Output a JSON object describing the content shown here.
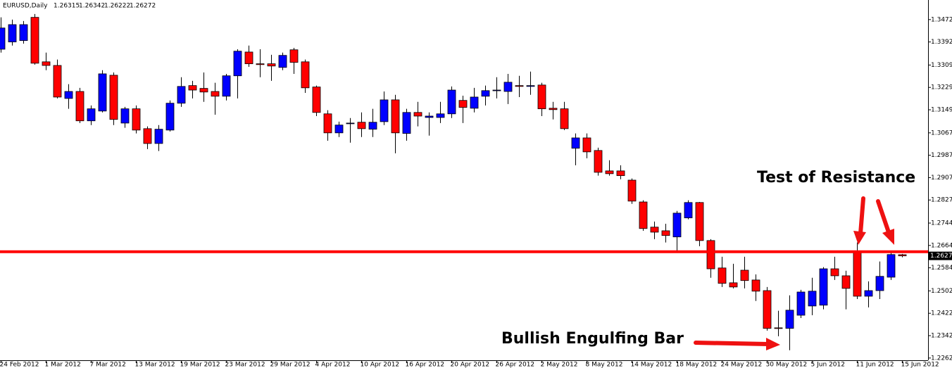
{
  "chart_data": {
    "type": "candlestick",
    "title": "EURUSD,Daily",
    "up_color": "#0000ff",
    "down_color": "#ff0000",
    "categories": [
      "24 Feb 2012",
      null,
      null,
      null,
      "1 Mar 2012",
      null,
      null,
      null,
      "7 Mar 2012",
      null,
      null,
      null,
      "13 Mar 2012",
      null,
      null,
      null,
      "19 Mar 2012",
      null,
      null,
      null,
      "23 Mar 2012",
      null,
      null,
      null,
      "29 Mar 2012",
      null,
      null,
      null,
      "4 Apr 2012",
      null,
      null,
      null,
      "10 Apr 2012",
      null,
      null,
      null,
      "16 Apr 2012",
      null,
      null,
      null,
      "20 Apr 2012",
      null,
      null,
      null,
      "26 Apr 2012",
      null,
      null,
      null,
      "2 May 2012",
      null,
      null,
      null,
      "8 May 2012",
      null,
      null,
      null,
      "14 May 2012",
      null,
      null,
      null,
      "18 May 2012",
      null,
      null,
      null,
      "24 May 2012",
      null,
      null,
      null,
      "30 May 2012",
      null,
      null,
      null,
      "5 Jun 2012",
      null,
      null,
      null,
      "11 Jun 2012",
      null,
      null,
      null,
      "15 Jun 2012"
    ],
    "open": [
      1.3366,
      1.3392,
      1.3397,
      1.348,
      1.3321,
      1.3308,
      1.319,
      1.3215,
      1.311,
      1.3145,
      1.3273,
      1.3102,
      1.3153,
      1.3082,
      1.3029,
      1.3077,
      1.3173,
      1.3236,
      1.3226,
      1.3215,
      1.3198,
      1.3271,
      1.3356,
      1.3314,
      1.3314,
      1.3301,
      1.3364,
      1.3321,
      1.3231,
      1.3135,
      1.3067,
      1.31,
      1.3105,
      1.308,
      1.3107,
      1.3185,
      1.3065,
      1.314,
      1.3122,
      1.3122,
      1.3135,
      1.3183,
      1.3155,
      1.3198,
      1.3218,
      1.3215,
      1.3236,
      1.3233,
      1.3238,
      1.3155,
      1.3153,
      1.3012,
      1.3049,
      1.3004,
      1.2931,
      1.2931,
      1.2898,
      1.282,
      1.273,
      1.2717,
      1.2695,
      1.2763,
      1.2818,
      1.2682,
      1.2584,
      1.2531,
      1.2576,
      1.2541,
      1.2503,
      1.237,
      1.2368,
      1.2415,
      1.2448,
      1.2451,
      1.2581,
      1.2556,
      1.2642,
      1.2483,
      1.2503,
      1.2551,
      1.26315
    ],
    "high": [
      1.348,
      1.3472,
      1.3467,
      1.3492,
      1.3354,
      1.3329,
      1.3241,
      1.3228,
      1.3165,
      1.3291,
      1.3283,
      1.316,
      1.3165,
      1.309,
      1.3095,
      1.3183,
      1.3266,
      1.3253,
      1.3283,
      1.3246,
      1.3278,
      1.3366,
      1.3379,
      1.3366,
      1.3346,
      1.3354,
      1.3371,
      1.3329,
      1.3236,
      1.3148,
      1.3107,
      1.312,
      1.314,
      1.3153,
      1.3215,
      1.3203,
      1.3153,
      1.3178,
      1.314,
      1.3178,
      1.3233,
      1.32,
      1.3228,
      1.3236,
      1.3266,
      1.3278,
      1.3271,
      1.3286,
      1.3246,
      1.3178,
      1.3178,
      1.3065,
      1.3065,
      1.3014,
      1.2969,
      1.2951,
      1.2904,
      1.2826,
      1.275,
      1.2742,
      1.2788,
      1.2826,
      1.282,
      1.2687,
      1.2624,
      1.2599,
      1.2624,
      1.2561,
      1.2516,
      1.2431,
      1.2486,
      1.2506,
      1.2549,
      1.2587,
      1.2624,
      1.2574,
      1.2675,
      1.2536,
      1.2607,
      1.2642,
      1.26342
    ],
    "low": [
      1.3354,
      1.3379,
      1.3386,
      1.3311,
      1.3291,
      1.319,
      1.3153,
      1.3102,
      1.3095,
      1.314,
      1.3095,
      1.3085,
      1.3065,
      1.3009,
      1.3002,
      1.3072,
      1.316,
      1.319,
      1.3178,
      1.3132,
      1.3183,
      1.319,
      1.3303,
      1.3266,
      1.3253,
      1.3291,
      1.3278,
      1.321,
      1.3127,
      1.3039,
      1.3052,
      1.3032,
      1.3052,
      1.3052,
      1.3095,
      1.2994,
      1.3039,
      1.309,
      1.3057,
      1.3102,
      1.312,
      1.3102,
      1.314,
      1.3165,
      1.319,
      1.317,
      1.3195,
      1.3203,
      1.3127,
      1.3115,
      1.3077,
      1.2951,
      1.2976,
      1.2914,
      1.2914,
      1.2901,
      1.2813,
      1.2717,
      1.2687,
      1.2675,
      1.2642,
      1.2758,
      1.2662,
      1.2549,
      1.2516,
      1.2511,
      1.2511,
      1.2466,
      1.236,
      1.234,
      1.229,
      1.2405,
      1.2415,
      1.2436,
      1.2541,
      1.2436,
      1.2473,
      1.2443,
      1.2473,
      1.2541,
      1.26222
    ],
    "close": [
      1.3442,
      1.3454,
      1.3454,
      1.3316,
      1.3308,
      1.3195,
      1.3215,
      1.311,
      1.3153,
      1.3278,
      1.3115,
      1.3153,
      1.3077,
      1.3029,
      1.308,
      1.3173,
      1.3233,
      1.322,
      1.3213,
      1.3198,
      1.3271,
      1.3359,
      1.3314,
      1.3311,
      1.3306,
      1.3344,
      1.3319,
      1.3228,
      1.314,
      1.3067,
      1.3095,
      1.3102,
      1.3082,
      1.3105,
      1.3185,
      1.3067,
      1.314,
      1.3127,
      1.3127,
      1.3135,
      1.322,
      1.3158,
      1.3195,
      1.3218,
      1.322,
      1.3248,
      1.3233,
      1.3236,
      1.3153,
      1.315,
      1.3082,
      1.3049,
      1.2999,
      1.2926,
      1.2921,
      1.2914,
      1.2823,
      1.2725,
      1.2712,
      1.27,
      1.278,
      1.2818,
      1.2682,
      1.2581,
      1.2529,
      1.2516,
      1.2539,
      1.2501,
      1.2368,
      1.2368,
      1.2433,
      1.2498,
      1.2501,
      1.2581,
      1.2556,
      1.2511,
      1.2483,
      1.2503,
      1.2554,
      1.2632,
      1.26272
    ],
    "ylim": [
      1.2254,
      1.3542
    ],
    "yticks": [
      {
        "value": 1.3472,
        "label": "1.34720"
      },
      {
        "value": 1.3392,
        "label": "1.33920"
      },
      1.33095,
      1.32295,
      1.31495,
      {
        "value": 1.3067,
        "label": "1.30670"
      },
      {
        "value": 1.2987,
        "label": "1.29870"
      },
      {
        "value": 1.2907,
        "label": "1.29070"
      },
      {
        "value": 1.2827,
        "label": "1.28270"
      },
      1.27445,
      1.26645,
      1.25845,
      {
        "value": 1.2502,
        "label": "1.25020"
      },
      {
        "value": 1.2422,
        "label": "1.24220"
      },
      {
        "value": 1.2342,
        "label": "1.23420"
      },
      {
        "value": 1.2262,
        "label": "1.22620"
      }
    ],
    "resistance": 1.2642,
    "resistance_color": "#ff0000",
    "annotations": [
      "Test of Resistance",
      "Bullish Engulfing Bar"
    ]
  }
}
